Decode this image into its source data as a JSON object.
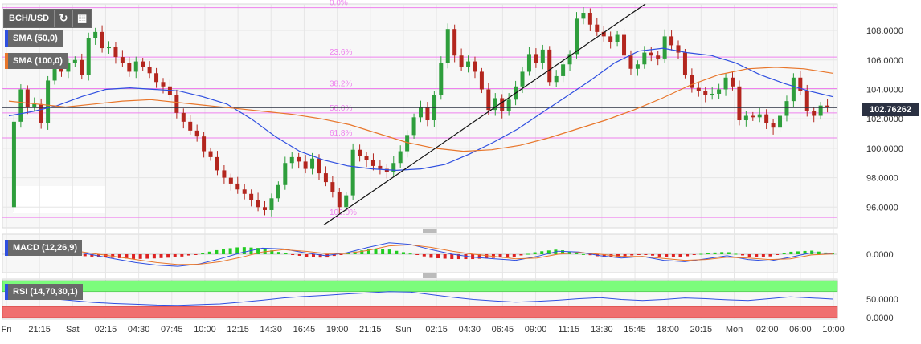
{
  "symbol": "BCH/USD",
  "indicators": {
    "sma50": {
      "label": "SMA (50,0)",
      "color": "#2f4fe0"
    },
    "sma100": {
      "label": "SMA (100,0)",
      "color": "#e8762b"
    },
    "macd": {
      "label": "MACD (12,26,9)"
    },
    "rsi": {
      "label": "RSI (14,70,30,1)"
    }
  },
  "current_price": "102.76262",
  "colors": {
    "up": "#2e9e3c",
    "down": "#b3261e",
    "fib": "#ee82ee",
    "trend": "#111111"
  },
  "chart_data": [
    {
      "type": "candlestick",
      "title": "",
      "ylim": [
        94.6,
        109.8
      ],
      "y_ticks": [
        "96.0000",
        "98.0000",
        "100.0000",
        "102.0000",
        "104.0000",
        "106.0000",
        "108.0000"
      ],
      "y_tick_values": [
        96,
        98,
        100,
        102,
        104,
        106,
        108
      ],
      "x_ticks": [
        "Fri",
        "21:15",
        "Sat",
        "02:15",
        "04:30",
        "07:45",
        "10:00",
        "12:15",
        "14:30",
        "16:45",
        "19:00",
        "21:15",
        "Sun",
        "02:15",
        "04:30",
        "06:45",
        "09:00",
        "11:15",
        "13:30",
        "15:45",
        "18:00",
        "20:15",
        "Mon",
        "02:00",
        "06:00",
        "10:00"
      ],
      "close_path": [
        96.0,
        101.8,
        104.0,
        102.8,
        103.0,
        101.7,
        104.6,
        105.9,
        105.2,
        105.8,
        106.0,
        105.0,
        107.5,
        107.9,
        106.8,
        106.9,
        106.2,
        105.8,
        105.2,
        105.9,
        105.5,
        105.1,
        104.5,
        104.2,
        103.6,
        102.4,
        101.8,
        101.2,
        100.8,
        99.8,
        99.4,
        98.5,
        98.0,
        97.6,
        97.2,
        96.9,
        96.5,
        96.0,
        95.8,
        96.6,
        97.5,
        99.0,
        99.4,
        99.1,
        98.6,
        99.3,
        98.3,
        97.7,
        97.0,
        96.0,
        96.8,
        99.9,
        99.5,
        99.2,
        98.8,
        98.6,
        98.4,
        99.0,
        99.8,
        100.9,
        102.1,
        102.8,
        101.9,
        103.6,
        105.8,
        108.1,
        106.3,
        105.5,
        105.9,
        105.2,
        104.0,
        102.6,
        103.4,
        102.5,
        103.3,
        104.2,
        105.2,
        106.4,
        105.8,
        106.7,
        104.5,
        104.9,
        105.7,
        106.4,
        108.8,
        109.2,
        108.4,
        107.9,
        107.6,
        107.2,
        107.7,
        106.3,
        105.4,
        105.7,
        106.5,
        106.3,
        106.1,
        107.6,
        107.0,
        106.5,
        105.0,
        104.1,
        103.9,
        103.6,
        103.7,
        104.0,
        104.8,
        104.2,
        101.9,
        102.2,
        102.1,
        102.3,
        101.7,
        101.4,
        102.2,
        103.2,
        104.8,
        103.9,
        102.5,
        102.2,
        102.9,
        102.76
      ],
      "series": [
        {
          "name": "SMA (50,0)",
          "values": [
            102.2,
            102.5,
            102.9,
            103.5,
            104.0,
            104.1,
            104.0,
            103.9,
            103.5,
            103.0,
            102.0,
            100.8,
            99.8,
            99.2,
            98.8,
            98.6,
            98.5,
            98.6,
            98.9,
            99.6,
            100.4,
            101.3,
            102.4,
            103.5,
            104.6,
            105.8,
            106.6,
            106.8,
            106.5,
            106.3,
            105.8,
            105.0,
            104.4,
            103.9,
            103.5
          ]
        },
        {
          "name": "SMA (100,0)",
          "values": [
            103.2,
            103.0,
            102.8,
            103.0,
            103.2,
            103.3,
            103.1,
            102.9,
            102.7,
            102.5,
            102.3,
            102.0,
            101.6,
            101.0,
            100.4,
            100.0,
            99.8,
            99.9,
            100.2,
            100.7,
            101.3,
            101.9,
            102.6,
            103.4,
            104.3,
            105.0,
            105.4,
            105.5,
            105.4,
            105.1
          ]
        }
      ],
      "fibonacci": [
        {
          "label": "0.0%",
          "value": 109.55
        },
        {
          "label": "23.6%",
          "value": 106.2
        },
        {
          "label": "38.2%",
          "value": 104.05
        },
        {
          "label": "50.0%",
          "value": 102.4
        },
        {
          "label": "61.8%",
          "value": 100.7
        },
        {
          "label": "100.0%",
          "value": 95.3
        }
      ],
      "trendline": {
        "from": [
          0.385,
          94.8
        ],
        "to": [
          0.77,
          109.8
        ]
      }
    },
    {
      "type": "macd",
      "y_ticks": [
        "0.0000"
      ],
      "ylim": [
        -1,
        1
      ],
      "macd_line": [
        0.35,
        0.45,
        0.42,
        0.2,
        -0.05,
        -0.3,
        -0.55,
        -0.72,
        -0.8,
        -0.65,
        -0.3,
        0.1,
        0.4,
        0.35,
        0.1,
        -0.1,
        0.1,
        0.45,
        0.75,
        0.65,
        0.3,
        0,
        -0.2,
        -0.3,
        -0.4,
        -0.15,
        0.2,
        0.15,
        -0.1,
        -0.25,
        -0.15,
        -0.4,
        -0.5,
        -0.3,
        -0.1,
        -0.35,
        -0.45,
        -0.2,
        0.1,
        0.05
      ],
      "signal_line": [
        0.2,
        0.3,
        0.35,
        0.25,
        0.05,
        -0.15,
        -0.35,
        -0.55,
        -0.68,
        -0.66,
        -0.5,
        -0.2,
        0.15,
        0.3,
        0.2,
        0.05,
        0.05,
        0.25,
        0.55,
        0.62,
        0.45,
        0.2,
        0,
        -0.15,
        -0.3,
        -0.25,
        0,
        0.12,
        0,
        -0.15,
        -0.15,
        -0.28,
        -0.4,
        -0.35,
        -0.2,
        -0.25,
        -0.35,
        -0.3,
        -0.05,
        0.02
      ]
    },
    {
      "type": "rsi",
      "ylim": [
        0,
        100
      ],
      "overbought": 70,
      "oversold": 30,
      "y_ticks": [
        "50.0000",
        "0.0000"
      ],
      "y_tick_values": [
        50,
        0
      ],
      "values": [
        55,
        53,
        51,
        46,
        41,
        38,
        36,
        34,
        33,
        35,
        37,
        42,
        47,
        53,
        57,
        60,
        64,
        67,
        70,
        69,
        62,
        55,
        49,
        45,
        42,
        44,
        47,
        51,
        54,
        49,
        46,
        49,
        53,
        51,
        48,
        46,
        51,
        56,
        53,
        50
      ]
    }
  ]
}
